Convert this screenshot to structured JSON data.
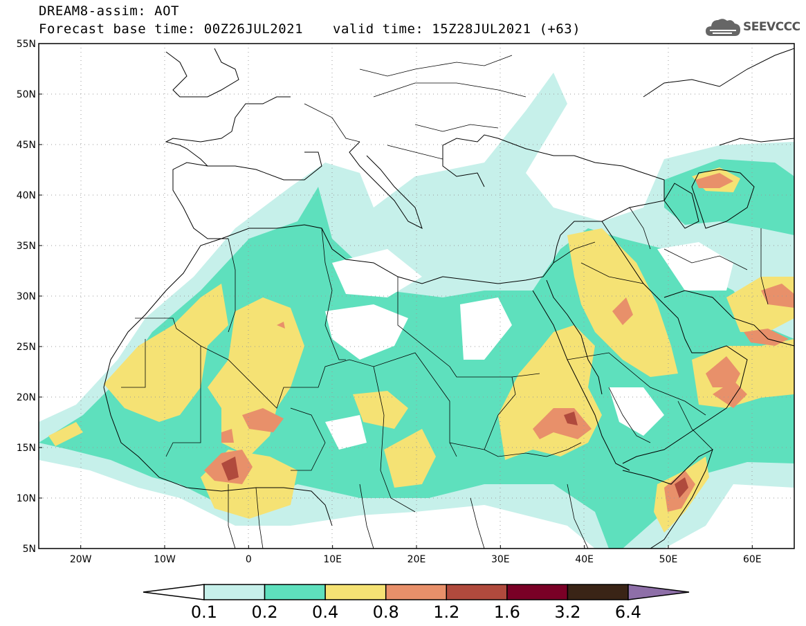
{
  "header": {
    "line1": "DREAM8-assim: AOT",
    "base_time": "Forecast base time: 00Z26JUL2021",
    "valid_time": "valid time: 15Z28JUL2021 (+63)"
  },
  "logo": {
    "text": "SEEVCCC",
    "icon": "cloud-icon"
  },
  "map": {
    "lon_range": [
      -25,
      65
    ],
    "lat_range": [
      5,
      55
    ],
    "lat_ticks": [
      {
        "value": 55,
        "label": "55N"
      },
      {
        "value": 50,
        "label": "50N"
      },
      {
        "value": 45,
        "label": "45N"
      },
      {
        "value": 40,
        "label": "40N"
      },
      {
        "value": 35,
        "label": "35N"
      },
      {
        "value": 30,
        "label": "30N"
      },
      {
        "value": 25,
        "label": "25N"
      },
      {
        "value": 20,
        "label": "20N"
      },
      {
        "value": 15,
        "label": "15N"
      },
      {
        "value": 10,
        "label": "10N"
      },
      {
        "value": 5,
        "label": "5N"
      }
    ],
    "lon_ticks": [
      {
        "value": -20,
        "label": "20W"
      },
      {
        "value": -10,
        "label": "10W"
      },
      {
        "value": 0,
        "label": "0"
      },
      {
        "value": 10,
        "label": "10E"
      },
      {
        "value": 20,
        "label": "20E"
      },
      {
        "value": 30,
        "label": "30E"
      },
      {
        "value": 40,
        "label": "40E"
      },
      {
        "value": 50,
        "label": "50E"
      },
      {
        "value": 60,
        "label": "60E"
      }
    ]
  },
  "colorbar": {
    "levels": [
      "0.1",
      "0.2",
      "0.4",
      "0.8",
      "1.2",
      "1.6",
      "3.2",
      "6.4"
    ],
    "colors": [
      "#ffffff",
      "#c6f0ea",
      "#5ee0bd",
      "#f5e274",
      "#e8906a",
      "#b04a3d",
      "#7a0026",
      "#3a2416",
      "#8e6fa8"
    ]
  }
}
